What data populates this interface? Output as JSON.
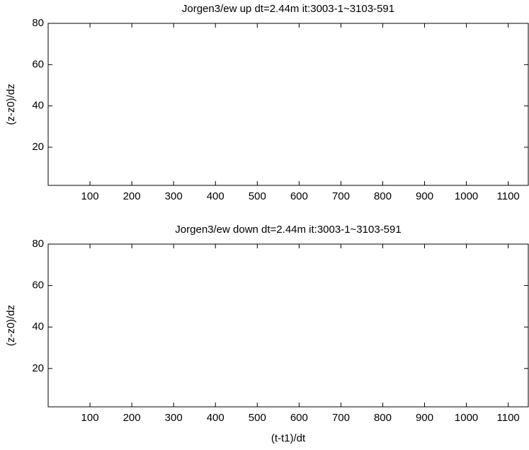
{
  "chart_data": [
    {
      "type": "contour",
      "title": "Jorgen3/ew up dt=2.44m it:3003-1~3103-591",
      "ylabel": "(z-z0)/dz",
      "xlim": [
        0,
        1148
      ],
      "ylim": [
        1.5,
        80
      ],
      "xticks": [
        100,
        200,
        300,
        400,
        500,
        600,
        700,
        800,
        900,
        1000,
        1100
      ],
      "yticks": [
        20,
        40,
        60,
        80
      ]
    },
    {
      "type": "contour",
      "title": "Jorgen3/ew down dt=2.44m it:3003-1~3103-591",
      "ylabel": "(z-z0)/dz",
      "xlabel": "(t-t1)/dt",
      "xlim": [
        0,
        1148
      ],
      "ylim": [
        1.5,
        80
      ],
      "xticks": [
        100,
        200,
        300,
        400,
        500,
        600,
        700,
        800,
        900,
        1000,
        1100
      ],
      "yticks": [
        20,
        40,
        60,
        80
      ]
    }
  ]
}
